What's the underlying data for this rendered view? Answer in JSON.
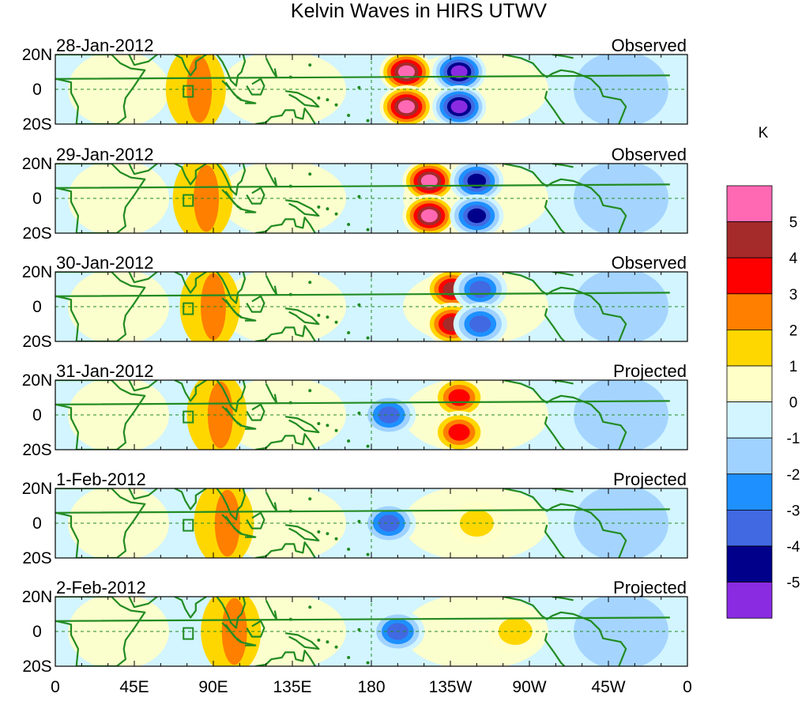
{
  "chart_data": {
    "type": "heatmap",
    "title": "Kelvin Waves in HIRS UTWV",
    "xlabel": "",
    "ylabel": "",
    "x_ticks": [
      "0",
      "45E",
      "90E",
      "135E",
      "180",
      "135W",
      "90W",
      "45W",
      "0"
    ],
    "y_ticks": [
      "20N",
      "0",
      "20S"
    ],
    "colorbar": {
      "unit": "K",
      "levels": [
        5,
        4,
        3,
        2,
        1,
        0,
        -1,
        -2,
        -3,
        -4,
        -5
      ],
      "colors": [
        "#ff69b4",
        "#a52a2a",
        "#ff0000",
        "#ff7f00",
        "#ffd700",
        "#ffffc8",
        "#d2f5ff",
        "#a0d2ff",
        "#1e90ff",
        "#4169e1",
        "#00008b",
        "#8a2be2"
      ]
    },
    "panels": [
      {
        "date": "28-Jan-2012",
        "label": "Observed",
        "features": [
          {
            "lon": 200,
            "lat": 10,
            "sign": 1,
            "peak": 5
          },
          {
            "lon": 200,
            "lat": -10,
            "sign": 1,
            "peak": 5
          },
          {
            "lon": 230,
            "lat": 10,
            "sign": -1,
            "peak": -5
          },
          {
            "lon": 230,
            "lat": -10,
            "sign": -1,
            "peak": -5
          }
        ]
      },
      {
        "date": "29-Jan-2012",
        "label": "Observed",
        "features": [
          {
            "lon": 213,
            "lat": 10,
            "sign": 1,
            "peak": 5
          },
          {
            "lon": 213,
            "lat": -10,
            "sign": 1,
            "peak": 5
          },
          {
            "lon": 240,
            "lat": 10,
            "sign": -1,
            "peak": -4
          },
          {
            "lon": 240,
            "lat": -10,
            "sign": -1,
            "peak": -4
          }
        ]
      },
      {
        "date": "30-Jan-2012",
        "label": "Observed",
        "features": [
          {
            "lon": 226,
            "lat": 10,
            "sign": 1,
            "peak": 4
          },
          {
            "lon": 226,
            "lat": -10,
            "sign": 1,
            "peak": 4
          },
          {
            "lon": 242,
            "lat": 10,
            "sign": -1,
            "peak": -3
          },
          {
            "lon": 242,
            "lat": -10,
            "sign": -1,
            "peak": -3
          }
        ]
      },
      {
        "date": "31-Jan-2012",
        "label": "Projected",
        "features": [
          {
            "lon": 230,
            "lat": 10,
            "sign": 1,
            "peak": 3
          },
          {
            "lon": 230,
            "lat": -10,
            "sign": 1,
            "peak": 3
          },
          {
            "lon": 190,
            "lat": 0,
            "sign": -1,
            "peak": -3
          }
        ]
      },
      {
        "date": "1-Feb-2012",
        "label": "Projected",
        "features": [
          {
            "lon": 190,
            "lat": 0,
            "sign": -1,
            "peak": -3
          },
          {
            "lon": 240,
            "lat": 0,
            "sign": 1,
            "peak": 1
          }
        ]
      },
      {
        "date": "2-Feb-2012",
        "label": "Projected",
        "features": [
          {
            "lon": 195,
            "lat": 0,
            "sign": -1,
            "peak": -3
          },
          {
            "lon": 262,
            "lat": 0,
            "sign": 1,
            "peak": 1
          }
        ]
      }
    ]
  }
}
